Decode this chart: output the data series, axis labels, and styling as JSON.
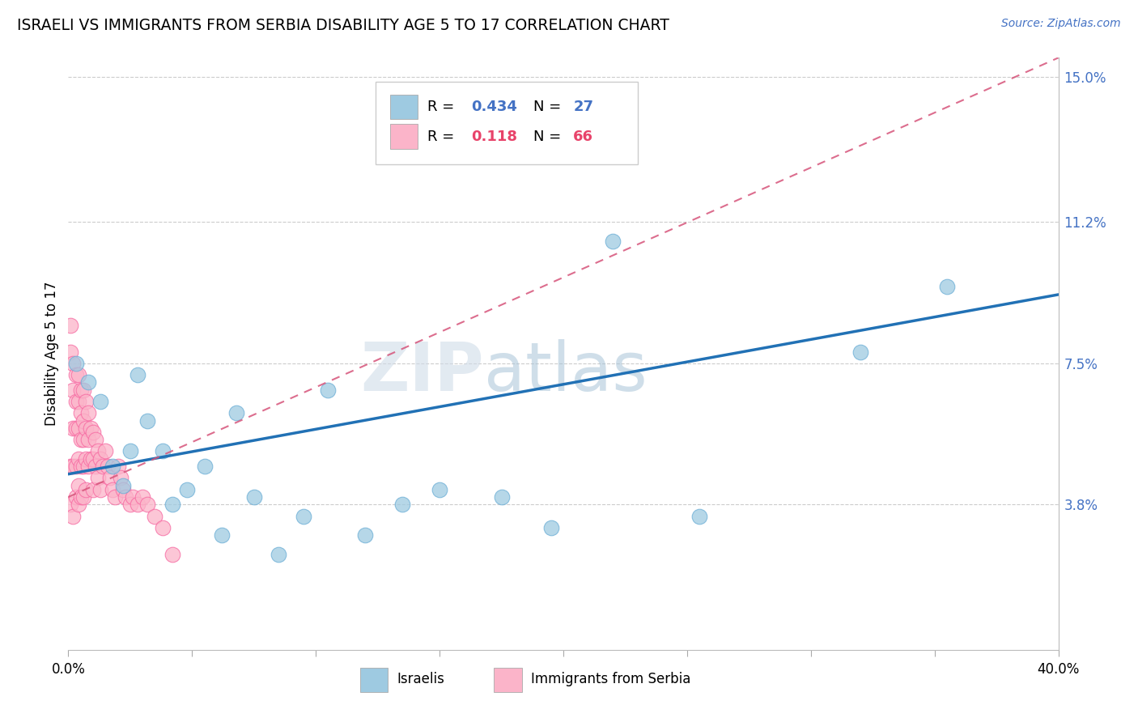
{
  "title": "ISRAELI VS IMMIGRANTS FROM SERBIA DISABILITY AGE 5 TO 17 CORRELATION CHART",
  "source_text": "Source: ZipAtlas.com",
  "ylabel": "Disability Age 5 to 17",
  "xlim": [
    0,
    0.4
  ],
  "ylim": [
    0,
    0.155
  ],
  "yticks_right": [
    0.038,
    0.075,
    0.112,
    0.15
  ],
  "ytick_right_labels": [
    "3.8%",
    "7.5%",
    "11.2%",
    "15.0%"
  ],
  "watermark_zip": "ZIP",
  "watermark_atlas": "atlas",
  "blue_color": "#9ecae1",
  "blue_edge_color": "#6baed6",
  "pink_color": "#fbb4c9",
  "pink_edge_color": "#f768a1",
  "blue_line_color": "#2171b5",
  "pink_line_color": "#d6547a",
  "grid_color": "#cccccc",
  "background_color": "#ffffff",
  "israelis_x": [
    0.003,
    0.008,
    0.013,
    0.018,
    0.022,
    0.025,
    0.028,
    0.032,
    0.038,
    0.042,
    0.048,
    0.055,
    0.062,
    0.068,
    0.075,
    0.085,
    0.095,
    0.105,
    0.12,
    0.135,
    0.15,
    0.175,
    0.195,
    0.22,
    0.255,
    0.32,
    0.355
  ],
  "israelis_y": [
    0.075,
    0.07,
    0.065,
    0.048,
    0.043,
    0.052,
    0.072,
    0.06,
    0.052,
    0.038,
    0.042,
    0.048,
    0.03,
    0.062,
    0.04,
    0.025,
    0.035,
    0.068,
    0.03,
    0.038,
    0.042,
    0.04,
    0.032,
    0.107,
    0.035,
    0.078,
    0.095
  ],
  "serbia_x": [
    0.001,
    0.001,
    0.001,
    0.001,
    0.002,
    0.002,
    0.002,
    0.002,
    0.002,
    0.003,
    0.003,
    0.003,
    0.003,
    0.003,
    0.004,
    0.004,
    0.004,
    0.004,
    0.004,
    0.004,
    0.005,
    0.005,
    0.005,
    0.005,
    0.005,
    0.006,
    0.006,
    0.006,
    0.006,
    0.006,
    0.007,
    0.007,
    0.007,
    0.007,
    0.008,
    0.008,
    0.008,
    0.009,
    0.009,
    0.01,
    0.01,
    0.01,
    0.011,
    0.011,
    0.012,
    0.012,
    0.013,
    0.013,
    0.014,
    0.015,
    0.016,
    0.017,
    0.018,
    0.019,
    0.02,
    0.021,
    0.022,
    0.023,
    0.025,
    0.026,
    0.028,
    0.03,
    0.032,
    0.035,
    0.038,
    0.042
  ],
  "serbia_y": [
    0.085,
    0.078,
    0.048,
    0.038,
    0.075,
    0.068,
    0.058,
    0.048,
    0.035,
    0.072,
    0.065,
    0.058,
    0.048,
    0.04,
    0.072,
    0.065,
    0.058,
    0.05,
    0.043,
    0.038,
    0.068,
    0.062,
    0.055,
    0.048,
    0.04,
    0.068,
    0.06,
    0.055,
    0.048,
    0.04,
    0.065,
    0.058,
    0.05,
    0.042,
    0.062,
    0.055,
    0.048,
    0.058,
    0.05,
    0.057,
    0.05,
    0.042,
    0.055,
    0.048,
    0.052,
    0.045,
    0.05,
    0.042,
    0.048,
    0.052,
    0.048,
    0.045,
    0.042,
    0.04,
    0.048,
    0.045,
    0.042,
    0.04,
    0.038,
    0.04,
    0.038,
    0.04,
    0.038,
    0.035,
    0.032,
    0.025
  ],
  "blue_line_x0": 0.0,
  "blue_line_y0": 0.046,
  "blue_line_x1": 0.4,
  "blue_line_y1": 0.093,
  "pink_line_x0": 0.0,
  "pink_line_y0": 0.04,
  "pink_line_x1": 0.4,
  "pink_line_y1": 0.155
}
